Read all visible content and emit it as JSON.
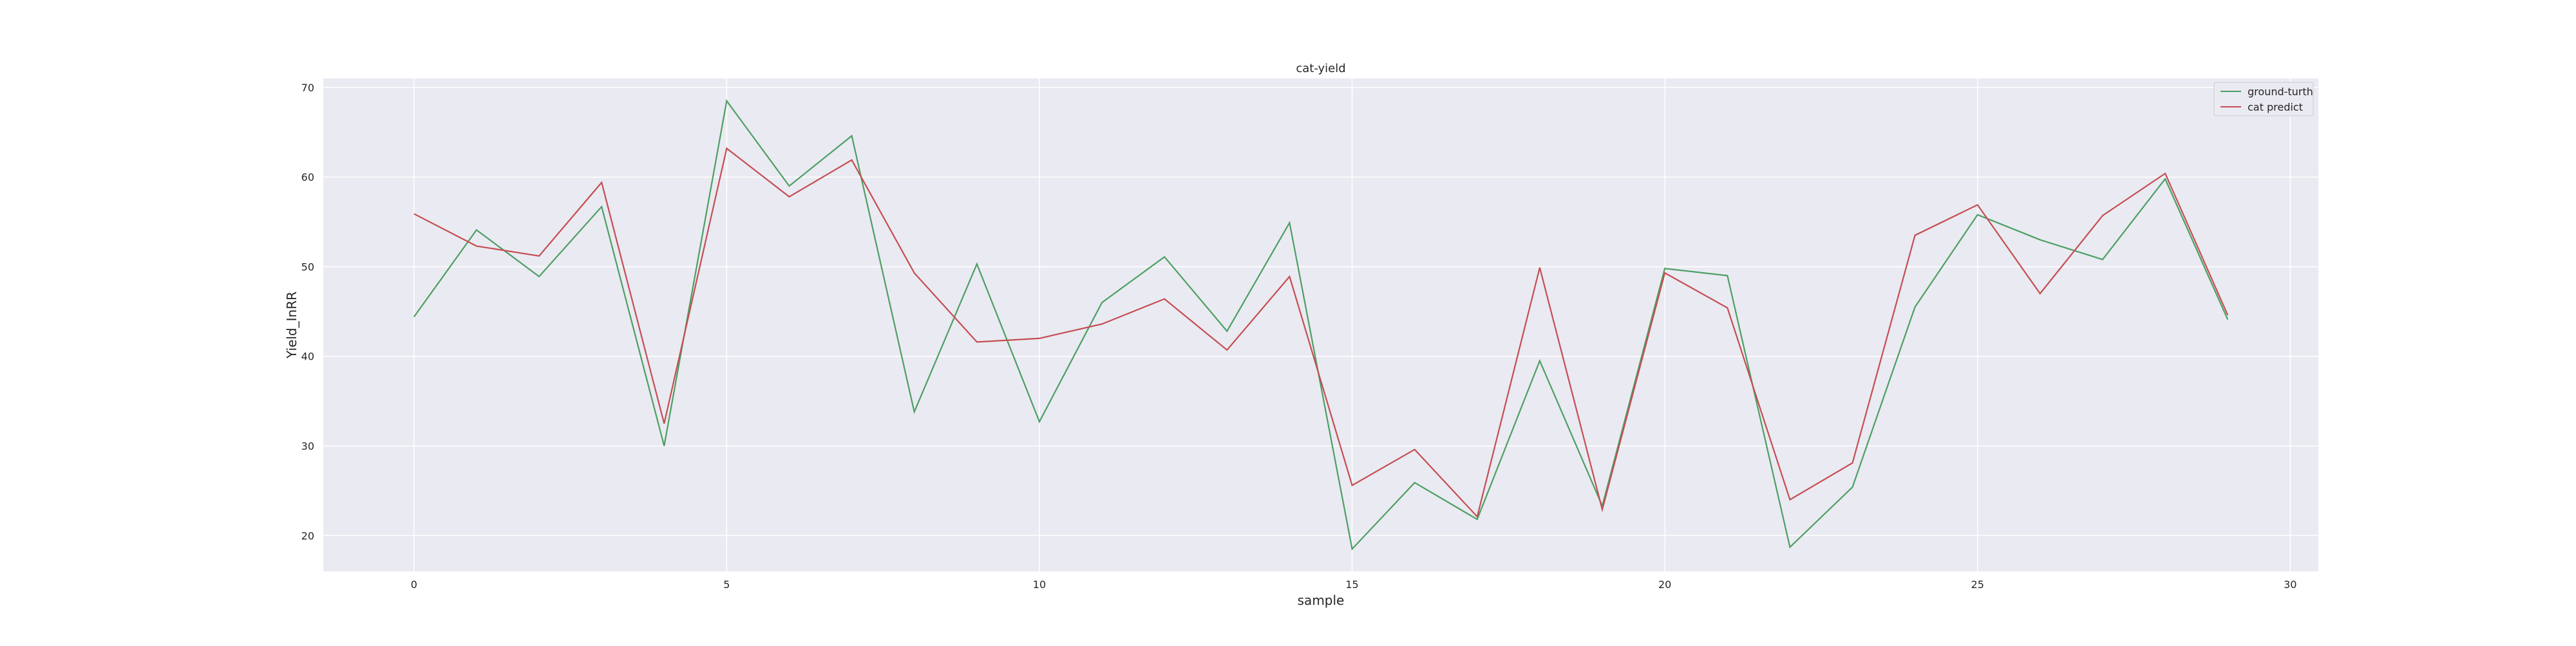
{
  "chart_data": {
    "type": "line",
    "title": "cat-yield",
    "xlabel": "sample",
    "ylabel": "Yield_InRR",
    "xlim": [
      -1.45,
      30.45
    ],
    "ylim": [
      16,
      71
    ],
    "xticks": [
      0,
      5,
      10,
      15,
      20,
      25,
      30
    ],
    "yticks": [
      20,
      30,
      40,
      50,
      60,
      70
    ],
    "grid": true,
    "legend_position": "top-right",
    "x": [
      0,
      1,
      2,
      3,
      4,
      5,
      6,
      7,
      8,
      9,
      10,
      11,
      12,
      13,
      14,
      15,
      16,
      17,
      18,
      19,
      20,
      21,
      22,
      23,
      24,
      25,
      26,
      27,
      28,
      29
    ],
    "series": [
      {
        "name": "ground-turth",
        "color": "#4c9f62",
        "values": [
          44.4,
          54.1,
          48.9,
          56.7,
          30.0,
          68.5,
          59.0,
          64.6,
          33.8,
          50.3,
          32.7,
          46.0,
          51.1,
          42.8,
          54.9,
          18.5,
          25.9,
          21.8,
          39.5,
          23.3,
          49.8,
          49.0,
          18.7,
          25.4,
          45.5,
          55.8,
          53.0,
          50.8,
          59.8,
          44.1
        ]
      },
      {
        "name": "cat predict",
        "color": "#c44e52",
        "values": [
          55.9,
          52.3,
          51.2,
          59.4,
          32.5,
          63.2,
          57.8,
          61.9,
          49.3,
          41.6,
          42.0,
          43.6,
          46.4,
          40.7,
          48.9,
          25.6,
          29.6,
          22.1,
          49.9,
          22.9,
          49.3,
          45.4,
          24.0,
          28.1,
          53.5,
          56.9,
          47.0,
          55.7,
          60.4,
          44.6
        ]
      }
    ]
  }
}
